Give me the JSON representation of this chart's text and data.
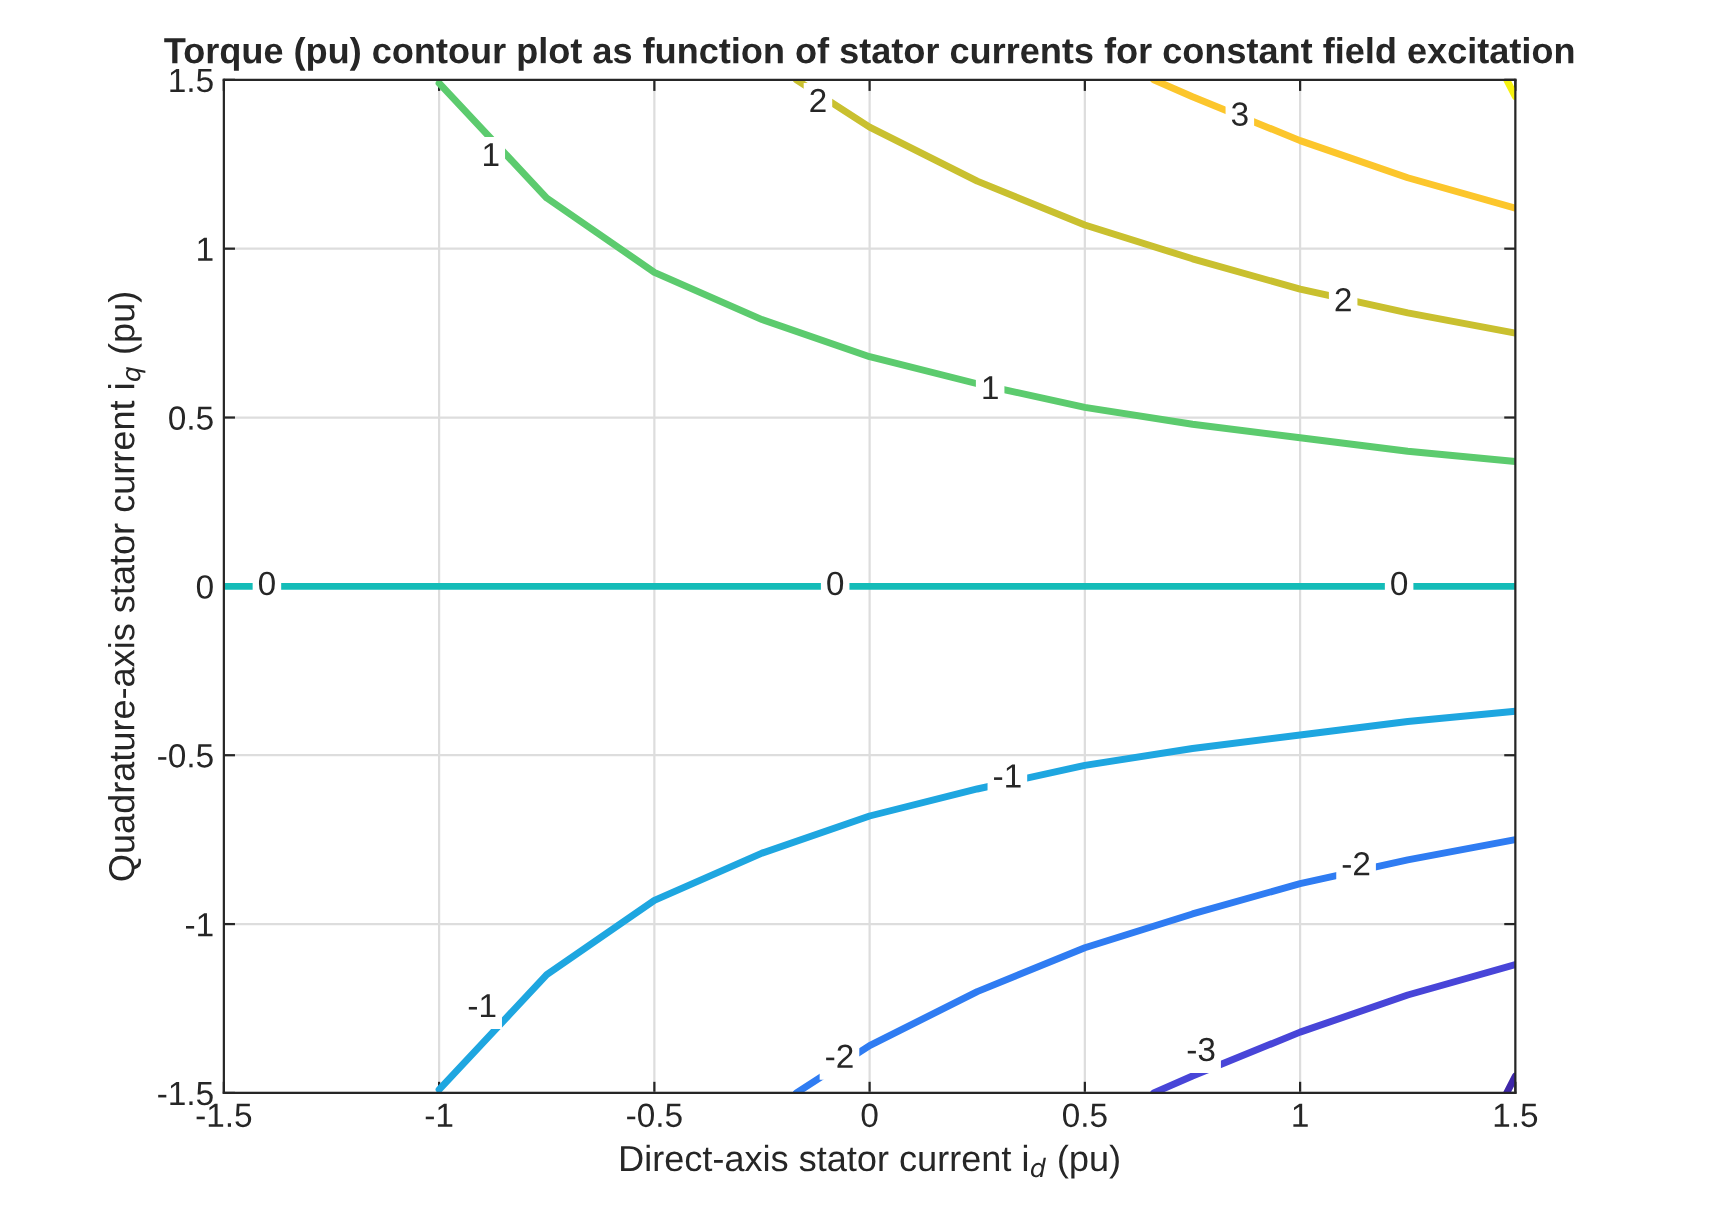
{
  "chart_data": {
    "type": "line",
    "title": "Torque (pu) contour plot as function of stator currents for constant field excitation",
    "xlabel": "Direct-axis stator current i$_{d}$ (pu)",
    "ylabel": "Quadrature-axis stator current i$_{q}$ (pu)",
    "xlim": [
      -1.5,
      1.5
    ],
    "ylim": [
      -1.5,
      1.5
    ],
    "xticks": [
      -1.5,
      -1,
      -0.5,
      0,
      0.5,
      1,
      1.5
    ],
    "yticks": [
      -1.5,
      -1,
      -0.5,
      0,
      0.5,
      1,
      1.5
    ],
    "grid": true,
    "line_style": "solid",
    "marker": "none",
    "series": [
      {
        "color": "#3e26a8",
        "x": [
          1.48,
          1.5
        ],
        "values": [
          -1.5,
          -1.45
        ]
      },
      {
        "color": "#4845d8",
        "x": [
          0.66,
          0.75,
          1,
          1.25,
          1.5
        ],
        "values": [
          -1.5,
          -1.45,
          -1.32,
          -1.21,
          -1.12
        ]
      },
      {
        "color": "#2f7cf2",
        "x": [
          -0.17,
          0,
          0.25,
          0.5,
          0.75,
          1,
          1.25,
          1.5
        ],
        "values": [
          -1.5,
          -1.36,
          -1.2,
          -1.07,
          -0.97,
          -0.88,
          -0.81,
          -0.75
        ]
      },
      {
        "color": "#1ea6e0",
        "x": [
          -1,
          -0.75,
          -0.5,
          -0.25,
          0,
          0.25,
          0.5,
          0.75,
          1,
          1.25,
          1.5
        ],
        "values": [
          -1.49,
          -1.15,
          -0.93,
          -0.79,
          -0.68,
          -0.6,
          -0.53,
          -0.48,
          -0.44,
          -0.4,
          -0.37
        ]
      },
      {
        "color": "#14bcb8",
        "x": [
          -1.5,
          1.5
        ],
        "values": [
          0,
          0
        ]
      },
      {
        "color": "#5ccb6e",
        "x": [
          -1,
          -0.75,
          -0.5,
          -0.25,
          0,
          0.25,
          0.5,
          0.75,
          1,
          1.25,
          1.5
        ],
        "values": [
          1.49,
          1.15,
          0.93,
          0.79,
          0.68,
          0.6,
          0.53,
          0.48,
          0.44,
          0.4,
          0.37
        ]
      },
      {
        "color": "#c9c02f",
        "x": [
          -0.17,
          0,
          0.25,
          0.5,
          0.75,
          1,
          1.25,
          1.5
        ],
        "values": [
          1.5,
          1.36,
          1.2,
          1.07,
          0.97,
          0.88,
          0.81,
          0.75
        ]
      },
      {
        "color": "#fcc62c",
        "x": [
          0.66,
          0.75,
          1,
          1.25,
          1.5
        ],
        "values": [
          1.5,
          1.45,
          1.32,
          1.21,
          1.12
        ]
      },
      {
        "color": "#f5f10f",
        "x": [
          1.48,
          1.5
        ],
        "values": [
          1.5,
          1.45
        ]
      }
    ],
    "annotations": [
      {
        "text": "2",
        "x": -0.12,
        "y": 1.43
      },
      {
        "text": "3",
        "x": 0.86,
        "y": 1.39
      },
      {
        "text": "1",
        "x": -0.88,
        "y": 1.27
      },
      {
        "text": "2",
        "x": 1.1,
        "y": 0.84
      },
      {
        "text": "1",
        "x": 0.28,
        "y": 0.58
      },
      {
        "text": "0",
        "x": -1.4,
        "y": 0
      },
      {
        "text": "0",
        "x": -0.08,
        "y": 0
      },
      {
        "text": "0",
        "x": 1.23,
        "y": 0
      },
      {
        "text": "-1",
        "x": 0.32,
        "y": -0.57
      },
      {
        "text": "-2",
        "x": 1.13,
        "y": -0.83
      },
      {
        "text": "-1",
        "x": -0.9,
        "y": -1.25
      },
      {
        "text": "-2",
        "x": -0.07,
        "y": -1.4
      },
      {
        "text": "-3",
        "x": 0.77,
        "y": -1.38
      }
    ]
  }
}
